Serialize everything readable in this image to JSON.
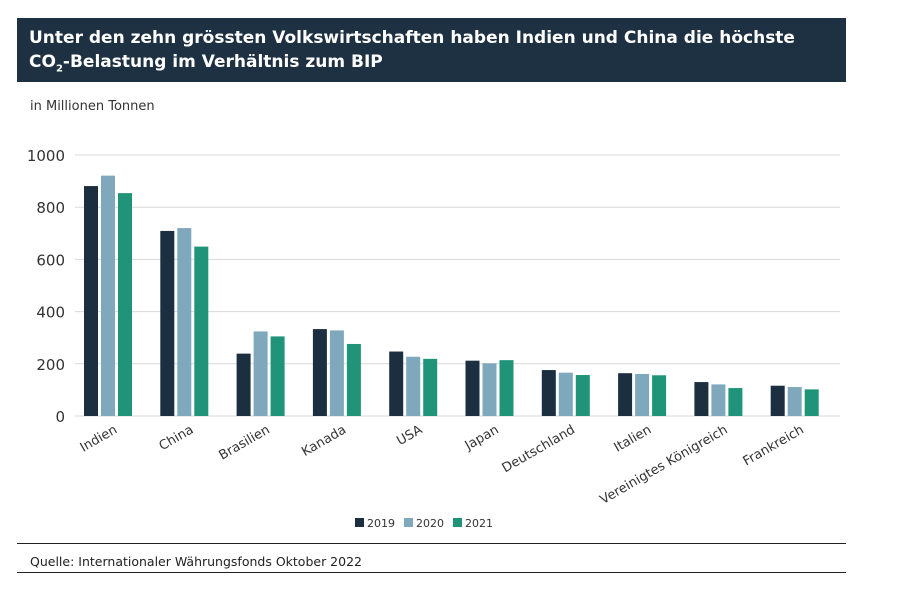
{
  "chart_data": {
    "type": "bar",
    "title_line1": "Unter den zehn grössten Volkswirtschaften haben Indien und China die höchste",
    "title_line2_pre": "CO",
    "title_line2_sub": "2",
    "title_line2_post": "-Belastung im Verhältnis zum BIP",
    "ylabel": "in Millionen Tonnen",
    "ylim": [
      0,
      1000
    ],
    "yticks": [
      0,
      200,
      400,
      600,
      800,
      1000
    ],
    "grid": true,
    "legend_placement": "bottom",
    "categories": [
      "Indien",
      "China",
      "Brasilien",
      "Kanada",
      "USA",
      "Japan",
      "Deutschland",
      "Italien",
      "Vereinigtes Königreich",
      "Frankreich"
    ],
    "series": [
      {
        "name": "2019",
        "color": "#1c2f41",
        "values": [
          881,
          709,
          239,
          333,
          247,
          212,
          176,
          164,
          130,
          116
        ]
      },
      {
        "name": "2020",
        "color": "#7fa8bd",
        "values": [
          921,
          720,
          324,
          328,
          227,
          202,
          166,
          161,
          121,
          111
        ]
      },
      {
        "name": "2021",
        "color": "#1f9479",
        "values": [
          854,
          649,
          305,
          276,
          219,
          214,
          157,
          156,
          107,
          102
        ]
      }
    ],
    "source": "Quelle: Internationaler Währungsfonds Oktober 2022"
  }
}
